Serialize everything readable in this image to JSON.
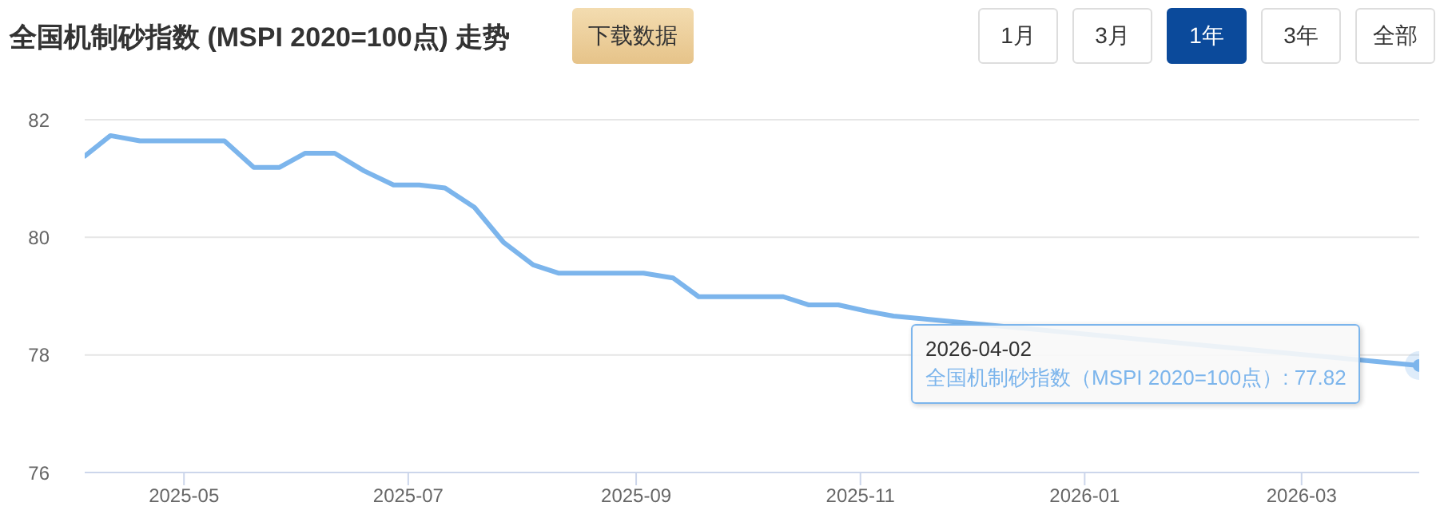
{
  "chart_data": {
    "type": "line",
    "title": "全国机制砂指数 (MSPI 2020=100点) 走势",
    "annotations": [
      "下载数据",
      "1月",
      "3月",
      "1年",
      "3年",
      "全部",
      "2026-04-02",
      "全国机制砂指数（MSPI 2020=100点）: 77.82"
    ],
    "x": [
      "2025-04-04",
      "2025-04-11",
      "2025-04-19",
      "2025-05-12",
      "2025-05-20",
      "2025-05-27",
      "2025-06-03",
      "2025-06-11",
      "2025-06-19",
      "2025-06-27",
      "2025-07-04",
      "2025-07-11",
      "2025-07-19",
      "2025-07-27",
      "2025-08-04",
      "2025-08-11",
      "2025-09-03",
      "2025-09-11",
      "2025-09-18",
      "2025-10-11",
      "2025-10-18",
      "2025-10-26",
      "2025-11-03",
      "2025-11-10",
      "2026-04-02"
    ],
    "series": [
      {
        "color": "#7cb5ec",
        "values": [
          81.38,
          81.73,
          81.64,
          81.64,
          81.19,
          81.19,
          81.43,
          81.43,
          81.13,
          80.89,
          80.89,
          80.84,
          80.51,
          79.91,
          79.53,
          79.39,
          79.39,
          79.31,
          78.99,
          78.99,
          78.85,
          78.85,
          78.74,
          78.66,
          77.82
        ]
      }
    ],
    "xlim": [
      "2025-04-04",
      "2026-04-02"
    ],
    "xticks": [
      "2025-05",
      "2025-07",
      "2025-09",
      "2025-11",
      "2026-01",
      "2026-03"
    ],
    "ylim": [
      76,
      82
    ],
    "yticks": [
      76,
      78,
      80,
      82
    ],
    "grid": "y",
    "marker": "none",
    "line_style": "solid",
    "legend": false
  }
}
